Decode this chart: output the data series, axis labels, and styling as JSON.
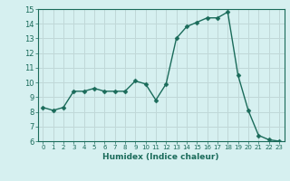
{
  "x": [
    0,
    1,
    2,
    3,
    4,
    5,
    6,
    7,
    8,
    9,
    10,
    11,
    12,
    13,
    14,
    15,
    16,
    17,
    18,
    19,
    20,
    21,
    22,
    23
  ],
  "y": [
    8.3,
    8.1,
    8.3,
    9.4,
    9.4,
    9.6,
    9.4,
    9.4,
    9.4,
    10.1,
    9.9,
    8.8,
    9.9,
    13.0,
    13.8,
    14.1,
    14.4,
    14.4,
    14.8,
    10.5,
    8.1,
    6.4,
    6.1,
    6.0
  ],
  "xlabel": "Humidex (Indice chaleur)",
  "ylim": [
    6,
    15
  ],
  "xlim": [
    -0.5,
    23.5
  ],
  "yticks": [
    6,
    7,
    8,
    9,
    10,
    11,
    12,
    13,
    14,
    15
  ],
  "xticks": [
    0,
    1,
    2,
    3,
    4,
    5,
    6,
    7,
    8,
    9,
    10,
    11,
    12,
    13,
    14,
    15,
    16,
    17,
    18,
    19,
    20,
    21,
    22,
    23
  ],
  "line_color": "#1a6b5a",
  "marker_color": "#1a6b5a",
  "bg_color": "#d6f0f0",
  "grid_color": "#c0d8d8",
  "tick_label_color": "#1a6b5a",
  "xlabel_color": "#1a6b5a",
  "marker_size": 2.5,
  "line_width": 1.0
}
